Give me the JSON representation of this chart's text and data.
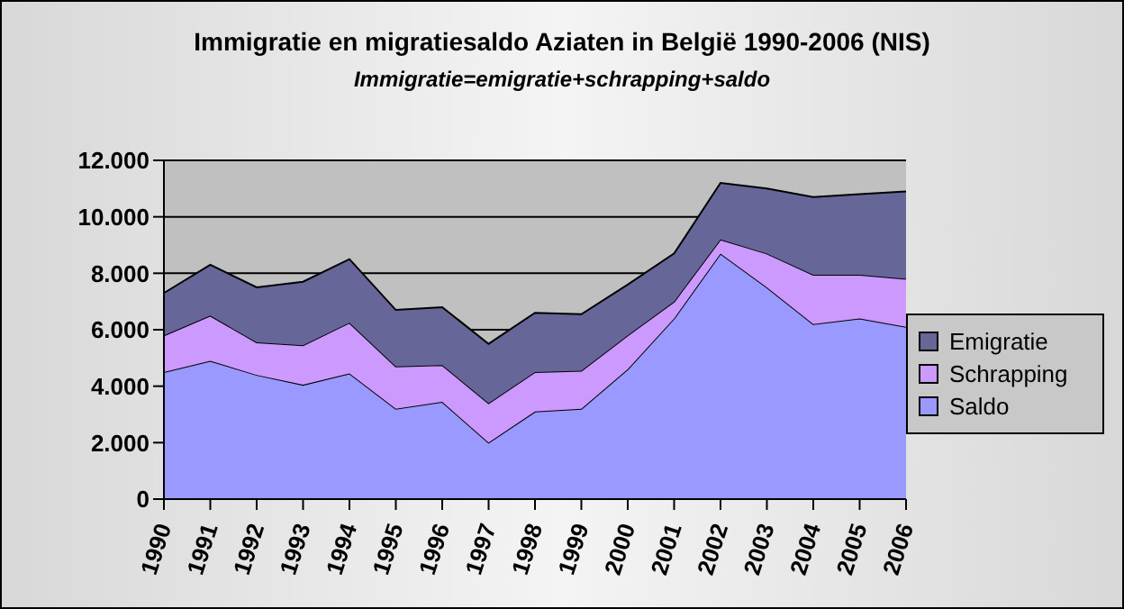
{
  "chart_data": {
    "type": "area",
    "title": "Immigratie en migratiesaldo Aziaten in België 1990-2006 (NIS)",
    "subtitle": "Immigratie=emigratie+schrapping+saldo",
    "categories": [
      "1990",
      "1991",
      "1992",
      "1993",
      "1994",
      "1995",
      "1996",
      "1997",
      "1998",
      "1999",
      "2000",
      "2001",
      "2002",
      "2003",
      "2004",
      "2005",
      "2006"
    ],
    "stacked": true,
    "series": [
      {
        "name": "Saldo",
        "color": "#9999ff",
        "values": [
          4500,
          4900,
          4400,
          4050,
          4450,
          3200,
          3450,
          2000,
          3100,
          3200,
          4600,
          6400,
          8700,
          7500,
          6200,
          6400,
          6100
        ]
      },
      {
        "name": "Schrapping",
        "color": "#cc99ff",
        "values": [
          1300,
          1600,
          1150,
          1400,
          1800,
          1500,
          1300,
          1400,
          1400,
          1350,
          1200,
          600,
          500,
          1200,
          1750,
          1550,
          1700
        ]
      },
      {
        "name": "Emigratie",
        "color": "#666699",
        "values": [
          1500,
          1800,
          1950,
          2250,
          2250,
          2000,
          2050,
          2100,
          2100,
          2000,
          1800,
          1700,
          2000,
          2300,
          2750,
          2850,
          3100
        ]
      }
    ],
    "ylim": [
      0,
      12000
    ],
    "yticks": [
      {
        "value": 0,
        "label": "0"
      },
      {
        "value": 2000,
        "label": "2.000"
      },
      {
        "value": 4000,
        "label": "4.000"
      },
      {
        "value": 6000,
        "label": "6.000"
      },
      {
        "value": 8000,
        "label": "8.000"
      },
      {
        "value": 10000,
        "label": "10.000"
      },
      {
        "value": 12000,
        "label": "12.000"
      }
    ],
    "grid": "y",
    "legend": "right"
  }
}
